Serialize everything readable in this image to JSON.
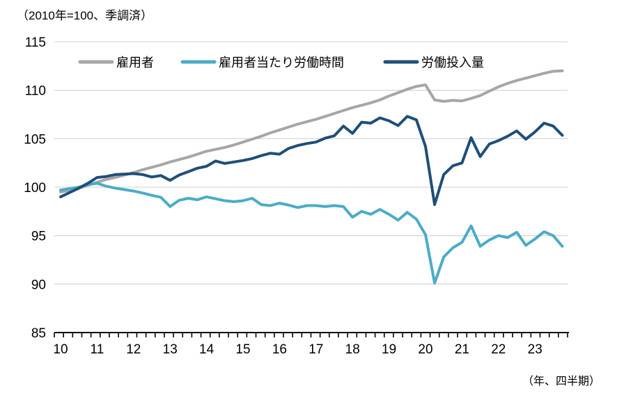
{
  "page": {
    "background": "#ffffff"
  },
  "chart_data": {
    "type": "line",
    "unit_note": "（2010年=100、季調済）",
    "legend_position": "top",
    "grid": "horizontal",
    "grid_color": "#d9d9d9",
    "axis_color": "#000000",
    "y_axis": {
      "min": 85,
      "max": 115,
      "ticks": [
        85,
        90,
        95,
        100,
        105,
        110,
        115
      ]
    },
    "x_axis": {
      "label_note": "（年、四半期）",
      "frequency": "quarterly",
      "start": "2010Q1",
      "end": "2023Q4",
      "year_labels": [
        "10",
        "11",
        "12",
        "13",
        "14",
        "15",
        "16",
        "17",
        "18",
        "19",
        "20",
        "21",
        "22",
        "23"
      ]
    },
    "series": [
      {
        "id": "employment",
        "name": "雇用者",
        "color": "#a6a6a6",
        "values": [
          99.5,
          99.7,
          99.9,
          100.2,
          100.5,
          100.8,
          101.0,
          101.25,
          101.5,
          101.8,
          102.05,
          102.3,
          102.6,
          102.85,
          103.1,
          103.4,
          103.7,
          103.9,
          104.1,
          104.35,
          104.65,
          104.95,
          105.25,
          105.6,
          105.9,
          106.2,
          106.5,
          106.75,
          107.0,
          107.3,
          107.6,
          107.9,
          108.2,
          108.45,
          108.7,
          109.0,
          109.4,
          109.75,
          110.1,
          110.4,
          110.55,
          109.0,
          108.85,
          108.95,
          108.9,
          109.15,
          109.45,
          109.9,
          110.35,
          110.7,
          111.0,
          111.25,
          111.5,
          111.75,
          111.95,
          112.0
        ]
      },
      {
        "id": "hours-per-employee",
        "name": "雇用者当たり労働時間",
        "color": "#4bacc6",
        "values": [
          99.7,
          99.85,
          100.0,
          100.25,
          100.4,
          100.1,
          99.9,
          99.75,
          99.6,
          99.4,
          99.15,
          98.95,
          98.0,
          98.65,
          98.85,
          98.7,
          99.0,
          98.8,
          98.6,
          98.5,
          98.6,
          98.85,
          98.2,
          98.1,
          98.35,
          98.15,
          97.9,
          98.1,
          98.1,
          98.0,
          98.1,
          98.0,
          96.9,
          97.5,
          97.2,
          97.7,
          97.2,
          96.6,
          97.4,
          96.7,
          95.1,
          90.1,
          92.8,
          93.75,
          94.3,
          96.0,
          93.9,
          94.55,
          95.0,
          94.8,
          95.35,
          94.0,
          94.65,
          95.4,
          95.0,
          93.9
        ]
      },
      {
        "id": "labor-input",
        "name": "労働投入量",
        "color": "#1f4e79",
        "values": [
          99.0,
          99.45,
          99.9,
          100.4,
          101.0,
          101.1,
          101.3,
          101.35,
          101.4,
          101.3,
          101.05,
          101.2,
          100.7,
          101.25,
          101.6,
          101.95,
          102.15,
          102.7,
          102.45,
          102.6,
          102.75,
          102.95,
          103.25,
          103.5,
          103.4,
          104.0,
          104.3,
          104.5,
          104.65,
          105.05,
          105.3,
          106.3,
          105.55,
          106.7,
          106.6,
          107.15,
          106.85,
          106.35,
          107.3,
          106.95,
          104.2,
          98.2,
          101.3,
          102.2,
          102.5,
          105.1,
          103.15,
          104.45,
          104.8,
          105.25,
          105.8,
          104.95,
          105.7,
          106.6,
          106.3,
          105.35
        ]
      }
    ]
  }
}
